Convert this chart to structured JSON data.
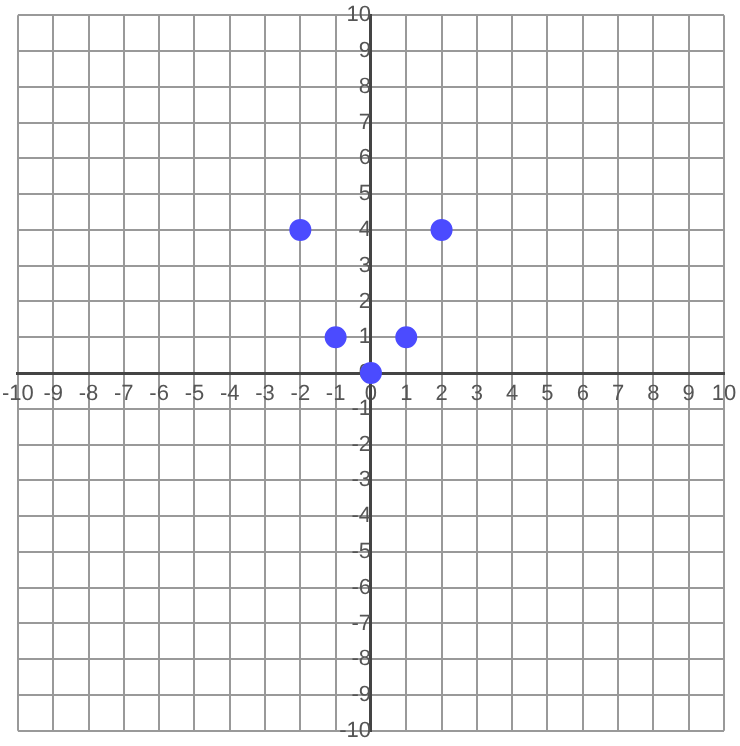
{
  "chart_data": {
    "type": "scatter",
    "x": [
      -2,
      -1,
      0,
      1,
      2
    ],
    "values": [
      4,
      1,
      0,
      1,
      4
    ],
    "color": "#4b4bff",
    "marker": "circle",
    "xlim": [
      -10,
      10
    ],
    "ylim": [
      -10,
      10
    ],
    "xticks": [
      -10,
      -9,
      -8,
      -7,
      -6,
      -5,
      -4,
      -3,
      -2,
      -1,
      0,
      1,
      2,
      3,
      4,
      5,
      6,
      7,
      8,
      9,
      10
    ],
    "yticks": [
      -10,
      -9,
      -8,
      -7,
      -6,
      -5,
      -4,
      -3,
      -2,
      -1,
      0,
      1,
      2,
      3,
      4,
      5,
      6,
      7,
      8,
      9,
      10
    ],
    "grid": true
  }
}
